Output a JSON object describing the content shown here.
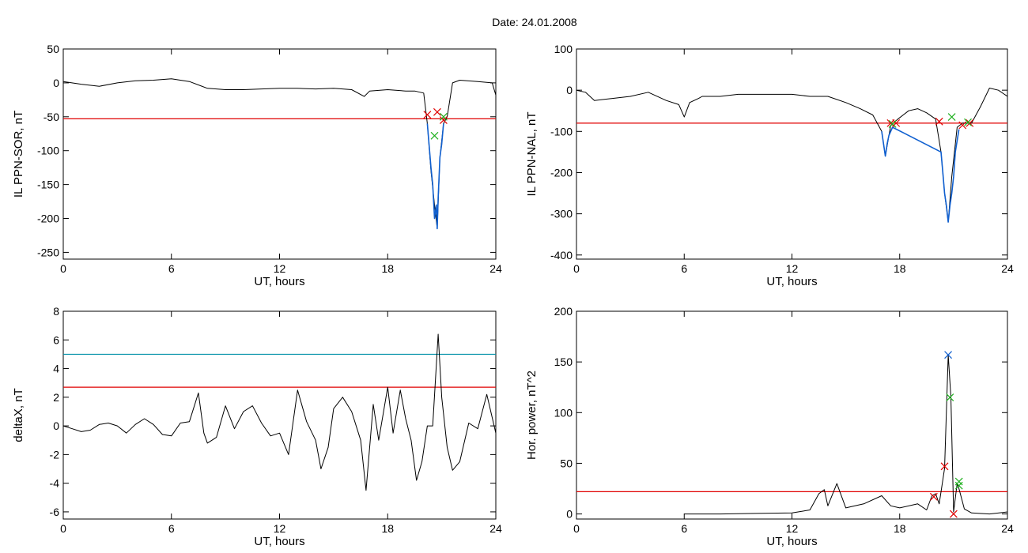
{
  "page": {
    "title": "Date:  24.01.2008"
  },
  "colors": {
    "axis": "#000000",
    "data": "#000000",
    "threshold": "#e00000",
    "level": "#0090a8",
    "highlight": "#1060d0",
    "marker_red": "#e00000",
    "marker_green": "#20b020",
    "marker_blue": "#1060d0"
  },
  "chart_data": [
    {
      "type": "line",
      "title": "",
      "xlabel": "UT, hours",
      "ylabel": "IL PPN-SOR, nT",
      "xlim": [
        0,
        24
      ],
      "ylim": [
        -260,
        50
      ],
      "xticks": [
        0,
        6,
        12,
        18,
        24
      ],
      "yticks": [
        50,
        0,
        -50,
        -100,
        -150,
        -200,
        -250
      ],
      "grid": false,
      "series": [
        {
          "x": [
            0,
            1,
            2,
            3,
            4,
            5,
            6,
            7,
            8,
            9,
            10,
            11,
            12,
            13,
            14,
            15,
            16,
            16.7,
            17,
            18,
            19,
            19.5,
            20,
            20.2,
            20.4,
            20.6,
            20.75,
            20.9,
            21.1,
            21.3,
            21.6,
            22,
            23,
            23.8,
            24
          ],
          "y": [
            2,
            -2,
            -5,
            0,
            3,
            4,
            6,
            2,
            -8,
            -10,
            -10,
            -9,
            -8,
            -8,
            -9,
            -8,
            -10,
            -20,
            -12,
            -10,
            -12,
            -12,
            -15,
            -60,
            -130,
            -180,
            -215,
            -110,
            -60,
            -50,
            0,
            4,
            2,
            0,
            -18
          ]
        },
        {
          "x": [
            20.2,
            20.4,
            20.5,
            20.6,
            20.7,
            20.75,
            20.8,
            20.9,
            21.0,
            21.1
          ],
          "y": [
            -60,
            -125,
            -150,
            -200,
            -180,
            -215,
            -170,
            -110,
            -90,
            -60
          ]
        }
      ],
      "thresholds": [
        -53
      ],
      "markers": [
        {
          "x": 20.2,
          "y": -47,
          "color": "red"
        },
        {
          "x": 20.75,
          "y": -43,
          "color": "red"
        },
        {
          "x": 21.1,
          "y": -55,
          "color": "red"
        },
        {
          "x": 20.6,
          "y": -78,
          "color": "green"
        },
        {
          "x": 21.1,
          "y": -50,
          "color": "green"
        }
      ]
    },
    {
      "type": "line",
      "title": "",
      "xlabel": "UT, hours",
      "ylabel": "IL PPN-NAL, nT",
      "xlim": [
        0,
        24
      ],
      "ylim": [
        -410,
        100
      ],
      "xticks": [
        0,
        6,
        12,
        18,
        24
      ],
      "yticks": [
        100,
        0,
        -100,
        -200,
        -300,
        -400
      ],
      "grid": false,
      "series": [
        {
          "x": [
            0,
            0.5,
            1,
            2,
            3,
            4,
            5,
            5.7,
            6,
            6.3,
            6.8,
            7,
            8,
            9,
            10,
            11,
            12,
            13,
            14,
            15,
            15.8,
            16.5,
            17,
            17.2,
            17.5,
            17.9,
            18.5,
            19,
            19.5,
            20,
            20.3,
            20.5,
            20.7,
            20.9,
            21.2,
            21.5,
            22,
            22.5,
            23,
            23.5,
            24
          ],
          "y": [
            0,
            -5,
            -25,
            -20,
            -15,
            -5,
            -25,
            -35,
            -65,
            -30,
            -20,
            -15,
            -15,
            -10,
            -10,
            -10,
            -10,
            -15,
            -15,
            -30,
            -45,
            -60,
            -100,
            -160,
            -85,
            -70,
            -50,
            -45,
            -55,
            -70,
            -150,
            -250,
            -320,
            -210,
            -90,
            -80,
            -80,
            -40,
            5,
            0,
            -15
          ]
        },
        {
          "x": [
            17.0,
            17.1,
            17.2,
            17.3,
            17.4,
            17.6,
            20.3,
            20.4,
            20.5,
            20.6,
            20.7,
            20.8,
            20.9,
            21.0,
            21.1,
            21.3
          ],
          "y": [
            -100,
            -130,
            -160,
            -130,
            -110,
            -90,
            -150,
            -200,
            -250,
            -280,
            -320,
            -280,
            -250,
            -210,
            -150,
            -95
          ]
        }
      ],
      "thresholds": [
        -80
      ],
      "markers": [
        {
          "x": 17.5,
          "y": -80,
          "color": "red"
        },
        {
          "x": 17.8,
          "y": -80,
          "color": "red"
        },
        {
          "x": 20.2,
          "y": -76,
          "color": "red"
        },
        {
          "x": 21.5,
          "y": -85,
          "color": "red"
        },
        {
          "x": 21.9,
          "y": -80,
          "color": "red"
        },
        {
          "x": 17.6,
          "y": -82,
          "color": "green"
        },
        {
          "x": 20.9,
          "y": -65,
          "color": "green"
        },
        {
          "x": 21.8,
          "y": -78,
          "color": "green"
        }
      ]
    },
    {
      "type": "line",
      "title": "",
      "xlabel": "UT, hours",
      "ylabel": "deltaX, nT",
      "xlim": [
        0,
        24
      ],
      "ylim": [
        -6.5,
        8
      ],
      "xticks": [
        0,
        6,
        12,
        18,
        24
      ],
      "yticks": [
        8,
        6,
        4,
        2,
        0,
        -2,
        -4,
        -6
      ],
      "grid": false,
      "series": [
        {
          "x": [
            0,
            0.5,
            1,
            1.5,
            2,
            2.5,
            3,
            3.5,
            4,
            4.5,
            5,
            5.5,
            6,
            6.5,
            7,
            7.5,
            7.8,
            8,
            8.5,
            9,
            9.5,
            10,
            10.5,
            11,
            11.5,
            12,
            12.5,
            13,
            13.5,
            14,
            14.3,
            14.7,
            15,
            15.5,
            16,
            16.5,
            16.8,
            17.2,
            17.5,
            18,
            18.3,
            18.7,
            19,
            19.3,
            19.6,
            19.9,
            20.2,
            20.5,
            20.8,
            21.0,
            21.3,
            21.6,
            22,
            22.5,
            23,
            23.5,
            24
          ],
          "y": [
            0,
            -0.2,
            -0.4,
            -0.3,
            0.1,
            0.2,
            0,
            -0.5,
            0.1,
            0.5,
            0.1,
            -0.6,
            -0.7,
            0.2,
            0.3,
            2.3,
            -0.5,
            -1.2,
            -0.8,
            1.4,
            -0.2,
            1.0,
            1.4,
            0.2,
            -0.7,
            -0.5,
            -2.0,
            2.5,
            0.3,
            -1.0,
            -3.0,
            -1.5,
            1.2,
            2.0,
            1.0,
            -1.0,
            -4.5,
            1.5,
            -1.0,
            2.7,
            -0.5,
            2.5,
            0.5,
            -1.0,
            -3.8,
            -2.5,
            0,
            0,
            6.4,
            2.0,
            -1.5,
            -3.1,
            -2.5,
            0.2,
            -0.2,
            2.2,
            -0.5
          ]
        }
      ],
      "thresholds": [
        2.7
      ],
      "levels": [
        5
      ]
    },
    {
      "type": "line",
      "title": "",
      "xlabel": "UT, hours",
      "ylabel": "Hor. power, nT^2",
      "xlim": [
        0,
        24
      ],
      "ylim": [
        -5,
        200
      ],
      "xticks": [
        0,
        6,
        12,
        18,
        24
      ],
      "yticks": [
        200,
        150,
        100,
        50,
        0
      ],
      "grid": false,
      "series": [
        {
          "x": [
            6,
            8,
            10,
            12,
            13,
            13.5,
            13.8,
            14,
            14.5,
            15,
            16,
            17,
            17.5,
            18,
            19,
            19.5,
            19.8,
            20,
            20.2,
            20.5,
            20.7,
            20.85,
            21,
            21.2,
            21.3,
            21.6,
            22,
            23,
            24
          ],
          "y": [
            0,
            0,
            0.5,
            1,
            4,
            20,
            24,
            8,
            30,
            6,
            10,
            18,
            8,
            6,
            10,
            4,
            18,
            20,
            10,
            45,
            157,
            115,
            2,
            30,
            25,
            5,
            1,
            0,
            2
          ]
        }
      ],
      "thresholds": [
        22
      ],
      "markers": [
        {
          "x": 20.7,
          "y": 157,
          "color": "blue"
        },
        {
          "x": 20.8,
          "y": 115,
          "color": "green"
        },
        {
          "x": 20.5,
          "y": 47,
          "color": "red"
        },
        {
          "x": 19.9,
          "y": 17,
          "color": "red"
        },
        {
          "x": 21.0,
          "y": 0,
          "color": "red"
        },
        {
          "x": 21.3,
          "y": 32,
          "color": "green"
        },
        {
          "x": 21.3,
          "y": 28,
          "color": "green"
        }
      ]
    }
  ]
}
